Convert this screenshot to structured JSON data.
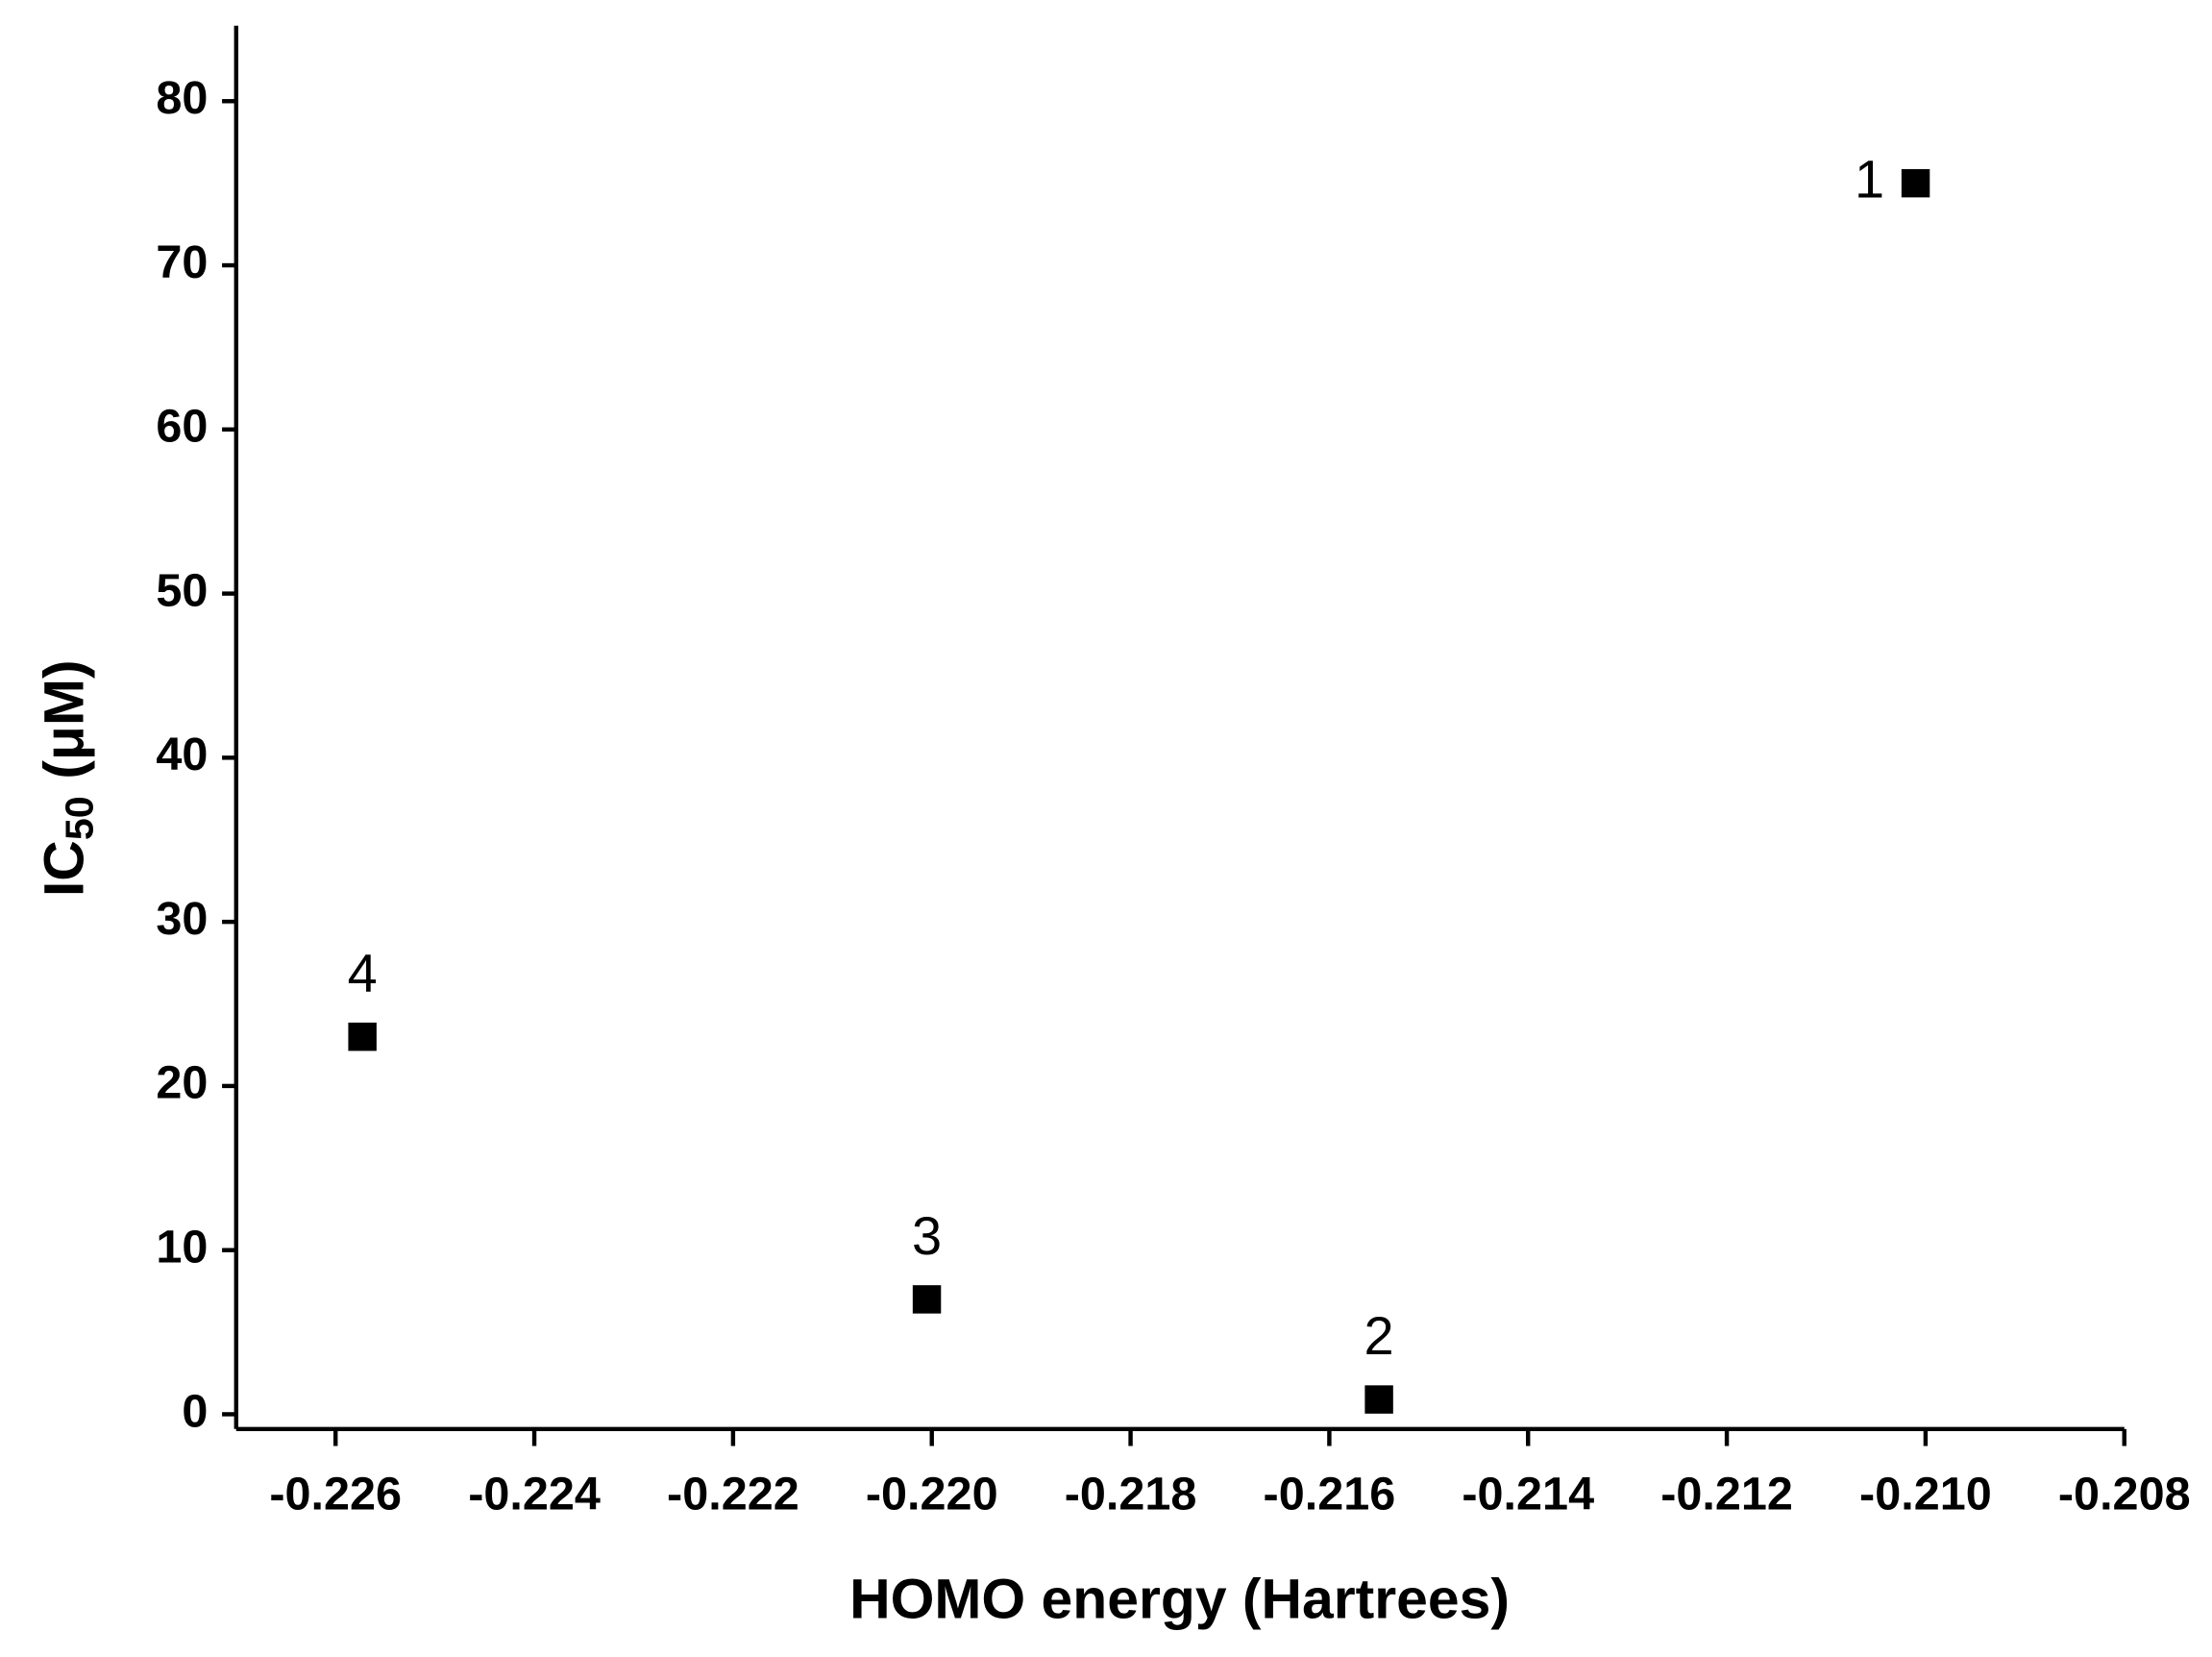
{
  "chart_data": {
    "type": "scatter",
    "xlabel": "HOMO energy (Hartrees)",
    "ylabel": {
      "text": "IC",
      "subscript": "50",
      "suffix": "(μM)"
    },
    "x": [
      -0.2101,
      -0.2155,
      -0.22005,
      -0.22573
    ],
    "values": [
      75,
      0.9,
      7,
      23
    ],
    "point_labels": [
      "1",
      "2",
      "3",
      "4"
    ],
    "color": "#000000",
    "xlim": [
      -0.227,
      -0.208
    ],
    "xticks": [
      -0.226,
      -0.224,
      -0.222,
      -0.22,
      -0.218,
      -0.216,
      -0.214,
      -0.212,
      -0.21,
      -0.208
    ],
    "ylim": [
      -0.9,
      84.6
    ],
    "yticks": [
      0,
      10,
      20,
      30,
      40,
      50,
      60,
      70,
      80
    ],
    "grid": false
  }
}
